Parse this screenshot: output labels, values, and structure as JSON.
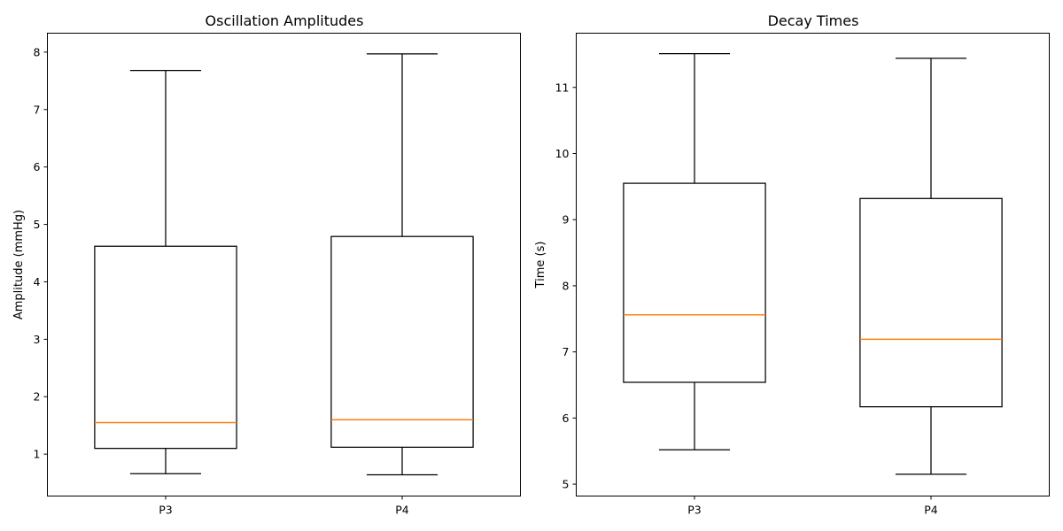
{
  "chart_data": [
    {
      "type": "box",
      "title": "Oscillation Amplitudes",
      "xlabel": "",
      "ylabel": "Amplitude (mmHg)",
      "categories": [
        "P3",
        "P4"
      ],
      "ylim": [
        0.27,
        8.33
      ],
      "yticks": [
        1,
        2,
        3,
        4,
        5,
        6,
        7,
        8
      ],
      "boxes": [
        {
          "label": "P3",
          "min": 0.66,
          "q1": 1.1,
          "median": 1.55,
          "q3": 4.62,
          "max": 7.68
        },
        {
          "label": "P4",
          "min": 0.64,
          "q1": 1.12,
          "median": 1.6,
          "q3": 4.79,
          "max": 7.97
        }
      ],
      "median_color": "#ff7f0e",
      "box_color": "#000000",
      "grid": false
    },
    {
      "type": "box",
      "title": "Decay Times",
      "xlabel": "",
      "ylabel": "Time (s)",
      "categories": [
        "P3",
        "P4"
      ],
      "ylim": [
        4.82,
        11.82
      ],
      "yticks": [
        5,
        6,
        7,
        8,
        9,
        10,
        11
      ],
      "boxes": [
        {
          "label": "P3",
          "min": 5.52,
          "q1": 6.54,
          "median": 7.56,
          "q3": 9.55,
          "max": 11.51
        },
        {
          "label": "P4",
          "min": 5.15,
          "q1": 6.17,
          "median": 7.19,
          "q3": 9.32,
          "max": 11.44
        }
      ],
      "median_color": "#ff7f0e",
      "box_color": "#000000",
      "grid": false
    }
  ]
}
